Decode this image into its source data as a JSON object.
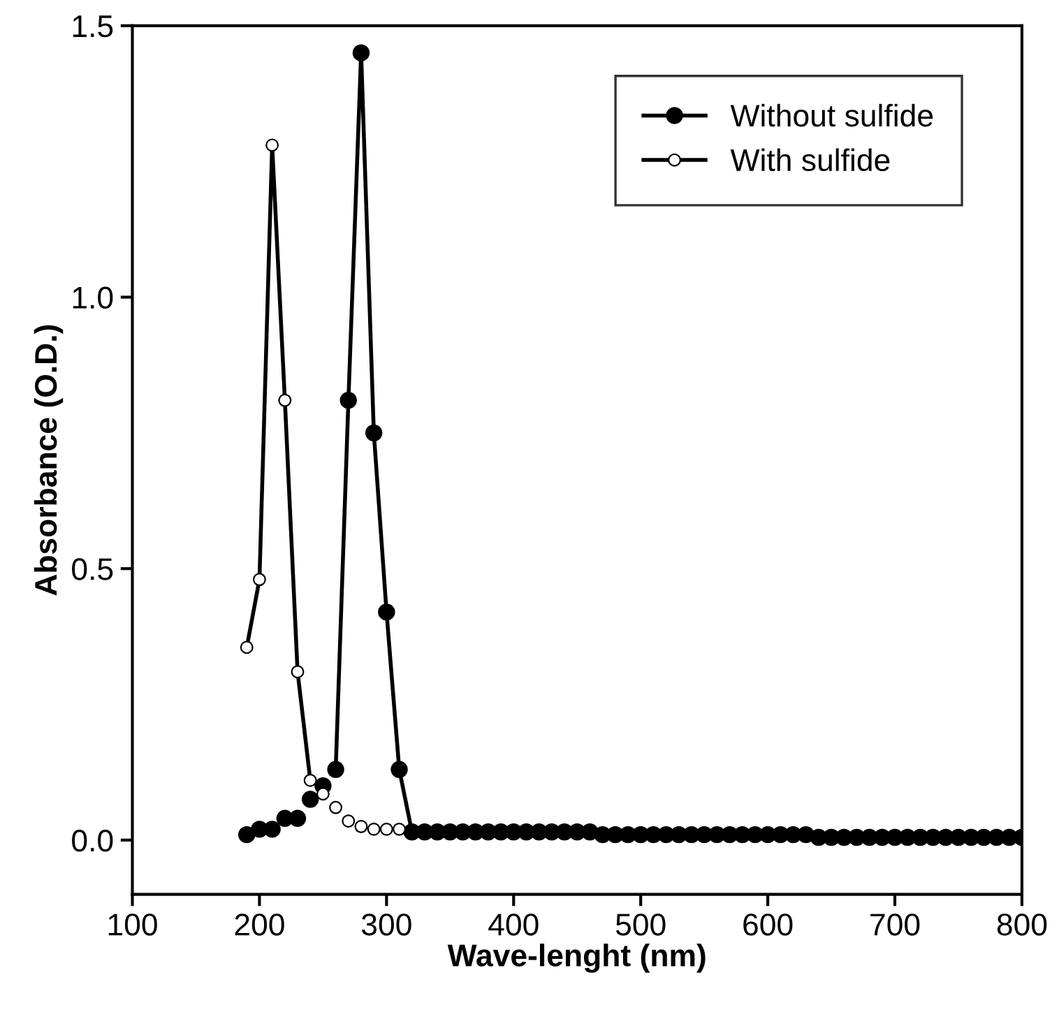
{
  "chart_data": {
    "type": "line",
    "xlabel": "Wave-lenght (nm)",
    "ylabel": "Absorbance (O.D.)",
    "xlim": [
      100,
      800
    ],
    "xticks": [
      100,
      200,
      300,
      400,
      500,
      600,
      700,
      800
    ],
    "ylim": [
      -0.1,
      1.5
    ],
    "yticks": [
      {
        "value": 0,
        "label": "0.0"
      },
      0.5,
      {
        "value": 1,
        "label": "1.0"
      },
      1.5
    ],
    "grid": false,
    "legend": "top right",
    "marker": "circle",
    "series": [
      {
        "name": "Without sulfide",
        "color": "#000000",
        "x": [
          260,
          270,
          280,
          290,
          300,
          310,
          320,
          330,
          340,
          350,
          360,
          370,
          380,
          390,
          400,
          410,
          420,
          430,
          440,
          450,
          460,
          470,
          480,
          490,
          500,
          510,
          520,
          530,
          540,
          550,
          560,
          570,
          580,
          590,
          600,
          610,
          620,
          630,
          640,
          650,
          660,
          670,
          680,
          690,
          700,
          710,
          720,
          730,
          740,
          750,
          760,
          770,
          780,
          790,
          800
        ],
        "values": [
          0.13,
          0.81,
          1.45,
          0.75,
          0.42,
          0.13,
          0.015,
          0.015,
          0.015,
          0.015,
          0.015,
          0.015,
          0.015,
          0.015,
          0.015,
          0.015,
          0.015,
          0.015,
          0.015,
          0.015,
          0.015,
          0.01,
          0.01,
          0.01,
          0.01,
          0.01,
          0.01,
          0.01,
          0.01,
          0.01,
          0.01,
          0.01,
          0.01,
          0.01,
          0.01,
          0.01,
          0.01,
          0.01,
          0.005,
          0.005,
          0.005,
          0.005,
          0.005,
          0.005,
          0.005,
          0.005,
          0.005,
          0.005,
          0.005,
          0.005,
          0.005,
          0.005,
          0.005,
          0.005,
          0.005
        ]
      },
      {
        "name": "With sulfide",
        "color": "#ffffff",
        "x": [
          190,
          200,
          210,
          220,
          230,
          240
        ],
        "values": [
          0.355,
          0.48,
          1.28,
          0.81,
          0.31,
          0.11
        ]
      },
      {
        "type": "scatter",
        "color": "#000000",
        "x": [
          190,
          200,
          210,
          220,
          230,
          240,
          250
        ],
        "values": [
          0.01,
          0.02,
          0.02,
          0.04,
          0.04,
          0.075,
          0.1
        ]
      },
      {
        "type": "scatter",
        "color": "#ffffff",
        "x": [
          250,
          260,
          270,
          280,
          290,
          300,
          310
        ],
        "values": [
          0.085,
          0.06,
          0.035,
          0.025,
          0.02,
          0.02,
          0.02
        ]
      }
    ]
  }
}
